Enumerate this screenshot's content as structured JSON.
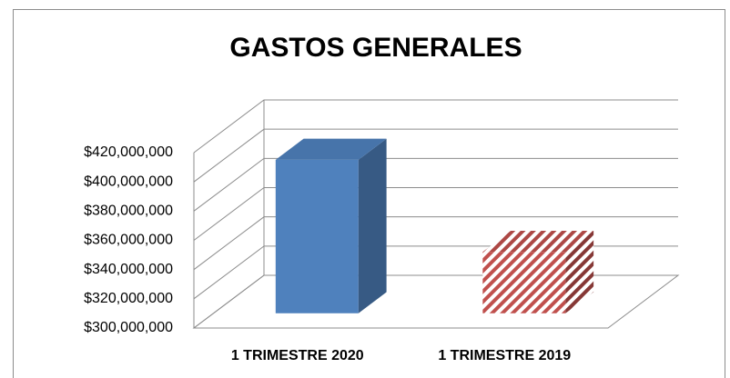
{
  "chart_data": {
    "type": "bar3d",
    "title": "GASTOS GENERALES",
    "categories": [
      "1 TRIMESTRE 2020",
      "1 TRIMESTRE 2019"
    ],
    "values": [
      405000000,
      342000000
    ],
    "colors": [
      "#4f81bd",
      "#c0504d"
    ],
    "fill_styles": [
      "solid",
      "diagonal-stripes"
    ],
    "ylim": [
      300000000,
      420000000
    ],
    "yticks": [
      {
        "value": 300000000,
        "label": "$300,000,000"
      },
      {
        "value": 320000000,
        "label": "$320,000,000"
      },
      {
        "value": 340000000,
        "label": "$340,000,000"
      },
      {
        "value": 360000000,
        "label": "$360,000,000"
      },
      {
        "value": 380000000,
        "label": "$380,000,000"
      },
      {
        "value": 400000000,
        "label": "$400,000,000"
      },
      {
        "value": 420000000,
        "label": "$420,000,000"
      }
    ],
    "grid": true
  }
}
